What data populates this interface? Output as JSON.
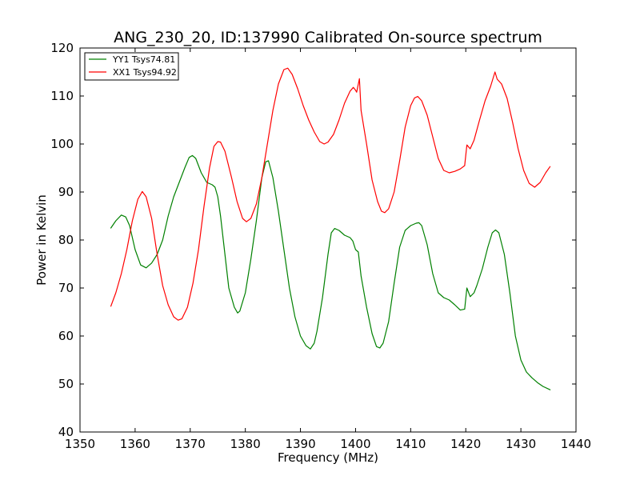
{
  "chart_data": {
    "type": "line",
    "title": "ANG_230_20, ID:137990 Calibrated On-source spectrum",
    "xlabel": "Frequency (MHz)",
    "ylabel": "Power in Kelvin",
    "xlim": [
      1350,
      1440
    ],
    "ylim": [
      40,
      120
    ],
    "xticks": [
      1350,
      1360,
      1370,
      1380,
      1390,
      1400,
      1410,
      1420,
      1430,
      1440
    ],
    "yticks": [
      40,
      50,
      60,
      70,
      80,
      90,
      100,
      110,
      120
    ],
    "grid": false,
    "legend_position": "top-left",
    "series": [
      {
        "name": "YY1 Tsys74.81",
        "color": "#008000",
        "points": [
          [
            1355.6,
            82.5
          ],
          [
            1356.5,
            84.0
          ],
          [
            1357.5,
            85.2
          ],
          [
            1358.3,
            84.8
          ],
          [
            1359.0,
            83.0
          ],
          [
            1360.0,
            78.0
          ],
          [
            1361.0,
            74.8
          ],
          [
            1362.0,
            74.2
          ],
          [
            1363.0,
            75.2
          ],
          [
            1364.0,
            77.0
          ],
          [
            1365.0,
            80.0
          ],
          [
            1366.0,
            85.0
          ],
          [
            1367.0,
            89.0
          ],
          [
            1368.0,
            92.0
          ],
          [
            1369.0,
            95.0
          ],
          [
            1369.8,
            97.2
          ],
          [
            1370.4,
            97.6
          ],
          [
            1371.0,
            97.0
          ],
          [
            1372.0,
            94.0
          ],
          [
            1373.0,
            92.0
          ],
          [
            1374.0,
            91.5
          ],
          [
            1374.5,
            91.0
          ],
          [
            1375.0,
            89.0
          ],
          [
            1375.5,
            85.0
          ],
          [
            1376.0,
            80.0
          ],
          [
            1377.0,
            70.0
          ],
          [
            1378.0,
            66.0
          ],
          [
            1378.6,
            64.8
          ],
          [
            1379.0,
            65.2
          ],
          [
            1380.0,
            69.0
          ],
          [
            1381.0,
            76.0
          ],
          [
            1382.0,
            84.0
          ],
          [
            1383.0,
            93.0
          ],
          [
            1383.7,
            96.3
          ],
          [
            1384.2,
            96.5
          ],
          [
            1385.0,
            93.0
          ],
          [
            1386.0,
            86.0
          ],
          [
            1387.0,
            78.0
          ],
          [
            1388.0,
            70.0
          ],
          [
            1389.0,
            64.0
          ],
          [
            1390.0,
            60.0
          ],
          [
            1391.0,
            58.0
          ],
          [
            1391.8,
            57.3
          ],
          [
            1392.5,
            58.5
          ],
          [
            1393.0,
            61.0
          ],
          [
            1394.0,
            68.0
          ],
          [
            1395.0,
            77.0
          ],
          [
            1395.6,
            81.5
          ],
          [
            1396.2,
            82.4
          ],
          [
            1397.0,
            82.0
          ],
          [
            1398.0,
            81.0
          ],
          [
            1399.0,
            80.5
          ],
          [
            1399.5,
            79.8
          ],
          [
            1400.0,
            78.0
          ],
          [
            1400.5,
            77.5
          ],
          [
            1401.0,
            72.5
          ],
          [
            1402.0,
            66.0
          ],
          [
            1403.0,
            60.5
          ],
          [
            1403.8,
            57.8
          ],
          [
            1404.4,
            57.5
          ],
          [
            1405.0,
            58.5
          ],
          [
            1406.0,
            63.0
          ],
          [
            1407.0,
            71.0
          ],
          [
            1408.0,
            78.5
          ],
          [
            1409.0,
            82.0
          ],
          [
            1410.0,
            83.0
          ],
          [
            1411.0,
            83.5
          ],
          [
            1411.5,
            83.6
          ],
          [
            1412.0,
            83.0
          ],
          [
            1413.0,
            79.0
          ],
          [
            1414.0,
            73.0
          ],
          [
            1415.0,
            69.0
          ],
          [
            1416.0,
            68.0
          ],
          [
            1417.0,
            67.5
          ],
          [
            1418.0,
            66.5
          ],
          [
            1419.0,
            65.4
          ],
          [
            1419.8,
            65.6
          ],
          [
            1420.2,
            70.0
          ],
          [
            1420.8,
            68.2
          ],
          [
            1421.5,
            69.0
          ],
          [
            1422.0,
            70.5
          ],
          [
            1423.0,
            74.0
          ],
          [
            1424.0,
            78.5
          ],
          [
            1424.8,
            81.5
          ],
          [
            1425.4,
            82.1
          ],
          [
            1426.0,
            81.5
          ],
          [
            1427.0,
            77.0
          ],
          [
            1428.0,
            69.0
          ],
          [
            1429.0,
            60.0
          ],
          [
            1430.0,
            55.0
          ],
          [
            1431.0,
            52.5
          ],
          [
            1432.0,
            51.3
          ],
          [
            1433.0,
            50.3
          ],
          [
            1434.0,
            49.5
          ],
          [
            1435.3,
            48.8
          ]
        ]
      },
      {
        "name": "XX1 Tsys94.92",
        "color": "#ff0000",
        "points": [
          [
            1355.6,
            66.2
          ],
          [
            1356.5,
            69.0
          ],
          [
            1357.5,
            73.0
          ],
          [
            1358.5,
            78.0
          ],
          [
            1359.5,
            84.0
          ],
          [
            1360.5,
            88.5
          ],
          [
            1361.3,
            90.1
          ],
          [
            1362.0,
            89.0
          ],
          [
            1363.0,
            84.5
          ],
          [
            1364.0,
            77.0
          ],
          [
            1365.0,
            70.5
          ],
          [
            1366.0,
            66.5
          ],
          [
            1367.0,
            64.0
          ],
          [
            1367.8,
            63.3
          ],
          [
            1368.5,
            63.6
          ],
          [
            1369.5,
            66.0
          ],
          [
            1370.5,
            71.0
          ],
          [
            1371.5,
            78.0
          ],
          [
            1372.5,
            87.0
          ],
          [
            1373.5,
            95.0
          ],
          [
            1374.3,
            99.5
          ],
          [
            1375.0,
            100.5
          ],
          [
            1375.5,
            100.4
          ],
          [
            1376.3,
            98.5
          ],
          [
            1377.5,
            93.0
          ],
          [
            1378.5,
            88.0
          ],
          [
            1379.5,
            84.5
          ],
          [
            1380.2,
            83.8
          ],
          [
            1381.0,
            84.5
          ],
          [
            1382.0,
            87.5
          ],
          [
            1383.0,
            93.0
          ],
          [
            1384.0,
            100.0
          ],
          [
            1385.0,
            107.0
          ],
          [
            1386.0,
            112.5
          ],
          [
            1387.0,
            115.5
          ],
          [
            1387.7,
            115.8
          ],
          [
            1388.5,
            114.5
          ],
          [
            1389.5,
            111.5
          ],
          [
            1390.5,
            108.0
          ],
          [
            1391.5,
            105.0
          ],
          [
            1392.5,
            102.5
          ],
          [
            1393.5,
            100.5
          ],
          [
            1394.3,
            100.0
          ],
          [
            1395.0,
            100.4
          ],
          [
            1396.0,
            102.0
          ],
          [
            1397.0,
            105.0
          ],
          [
            1398.0,
            108.5
          ],
          [
            1399.0,
            111.0
          ],
          [
            1399.6,
            111.8
          ],
          [
            1400.0,
            111.2
          ],
          [
            1400.2,
            110.8
          ],
          [
            1400.7,
            113.6
          ],
          [
            1401.0,
            107.0
          ],
          [
            1402.0,
            100.0
          ],
          [
            1403.0,
            92.5
          ],
          [
            1404.0,
            88.0
          ],
          [
            1404.7,
            86.0
          ],
          [
            1405.3,
            85.7
          ],
          [
            1406.0,
            86.5
          ],
          [
            1407.0,
            90.0
          ],
          [
            1408.0,
            96.5
          ],
          [
            1409.0,
            103.5
          ],
          [
            1410.0,
            108.0
          ],
          [
            1410.7,
            109.6
          ],
          [
            1411.3,
            109.9
          ],
          [
            1412.0,
            109.0
          ],
          [
            1413.0,
            106.0
          ],
          [
            1414.0,
            101.5
          ],
          [
            1415.0,
            97.0
          ],
          [
            1416.0,
            94.5
          ],
          [
            1417.0,
            94.0
          ],
          [
            1418.0,
            94.3
          ],
          [
            1419.0,
            94.8
          ],
          [
            1419.8,
            95.5
          ],
          [
            1420.2,
            99.8
          ],
          [
            1420.8,
            99.0
          ],
          [
            1421.5,
            100.8
          ],
          [
            1422.5,
            105.0
          ],
          [
            1423.5,
            109.0
          ],
          [
            1424.5,
            112.0
          ],
          [
            1425.3,
            115.0
          ],
          [
            1425.7,
            113.5
          ],
          [
            1426.5,
            112.5
          ],
          [
            1427.5,
            109.5
          ],
          [
            1428.5,
            104.5
          ],
          [
            1429.5,
            99.0
          ],
          [
            1430.5,
            94.5
          ],
          [
            1431.5,
            91.8
          ],
          [
            1432.5,
            91.0
          ],
          [
            1433.5,
            92.0
          ],
          [
            1434.5,
            94.0
          ],
          [
            1435.3,
            95.3
          ]
        ]
      }
    ]
  }
}
